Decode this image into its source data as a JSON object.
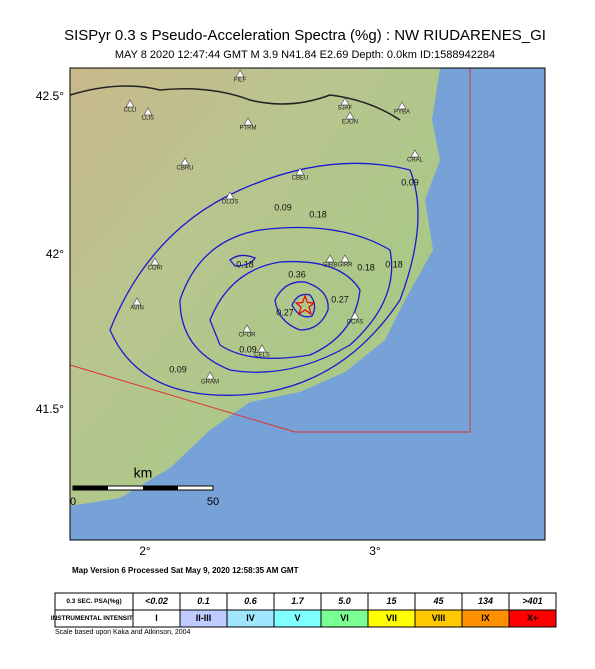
{
  "title": "SISPyr 0.3 s Pseudo-Acceleration Spectra (%g) : NW RIUDARENES_GI",
  "subtitle": "MAY 8 2020 12:47:44  GMT   M 3.9    N41.84 E2.69    Depth: 0.0km    ID:1588942284",
  "map": {
    "lat_labels": [
      "42.5°",
      "42°",
      "41.5°"
    ],
    "lon_labels": [
      "2°",
      "3°"
    ],
    "stations": [
      "FILF",
      "CLLI",
      "LLIS",
      "SJAF",
      "EJON",
      "PYBA",
      "PTRM",
      "CRAL",
      "CBRU",
      "CBEU",
      "OLOS",
      "GIRB",
      "GIRR",
      "CORI",
      "AVIN",
      "CCAS",
      "CFOR",
      "CELS",
      "GRAM"
    ],
    "contour_labels": [
      "0.09",
      "0.18",
      "0.18",
      "0.18",
      "0.18",
      "0.36",
      "0.27",
      "0.27",
      "0.09",
      "0.09",
      "0.09"
    ],
    "scale": {
      "unit": "km",
      "ticks": [
        "0",
        "50"
      ]
    }
  },
  "version_note": "Map Version 6 Processed Sat May  9, 2020 12:58:35 AM GMT",
  "legend": {
    "psa_header": "0.3 SEC. PSA(%g)",
    "psa_values": [
      "<0.02",
      "0.1",
      "0.6",
      "1.7",
      "5.0",
      "15",
      "45",
      "134",
      ">401"
    ],
    "intensity_header": "INSTRUMENTAL INTENSITY",
    "intensity_values": [
      "I",
      "II-III",
      "IV",
      "V",
      "VI",
      "VII",
      "VIII",
      "IX",
      "X+"
    ],
    "colors": [
      "#ffffff",
      "#bfccff",
      "#a0e6ff",
      "#80ffff",
      "#7aff93",
      "#ffff00",
      "#ffc800",
      "#ff9100",
      "#ff0000"
    ]
  },
  "scale_note": "Scale based upon Kaka and Atkinson, 2004"
}
